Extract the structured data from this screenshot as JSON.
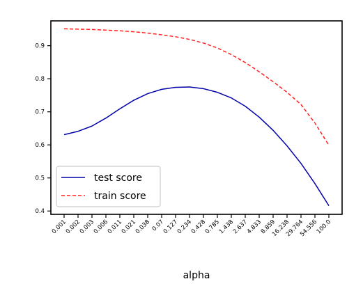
{
  "chart_data": {
    "type": "line",
    "title": "",
    "xlabel": "alpha",
    "ylabel": "",
    "categories": [
      "0.001",
      "0.002",
      "0.003",
      "0.006",
      "0.011",
      "0.021",
      "0.038",
      "0.07",
      "0.127",
      "0.234",
      "0.428",
      "0.785",
      "1.438",
      "2.637",
      "4.833",
      "8.859",
      "16.238",
      "29.764",
      "54.556",
      "100.0"
    ],
    "series": [
      {
        "name": "test score",
        "color": "#0000aa",
        "style": "solid",
        "values": [
          0.631,
          0.641,
          0.657,
          0.681,
          0.709,
          0.735,
          0.755,
          0.768,
          0.774,
          0.775,
          0.77,
          0.759,
          0.742,
          0.717,
          0.684,
          0.644,
          0.597,
          0.544,
          0.483,
          0.416
        ]
      },
      {
        "name": "train score",
        "color": "#ff2222",
        "style": "dashed",
        "values": [
          0.951,
          0.95,
          0.949,
          0.947,
          0.945,
          0.942,
          0.938,
          0.933,
          0.927,
          0.919,
          0.908,
          0.893,
          0.873,
          0.849,
          0.821,
          0.791,
          0.759,
          0.722,
          0.666,
          0.599
        ]
      }
    ],
    "ylim": [
      0.39,
      0.975
    ],
    "yticks": [
      0.4,
      0.5,
      0.6,
      0.7,
      0.8,
      0.9
    ],
    "legend": {
      "position": "lower-left"
    },
    "grid": false
  }
}
